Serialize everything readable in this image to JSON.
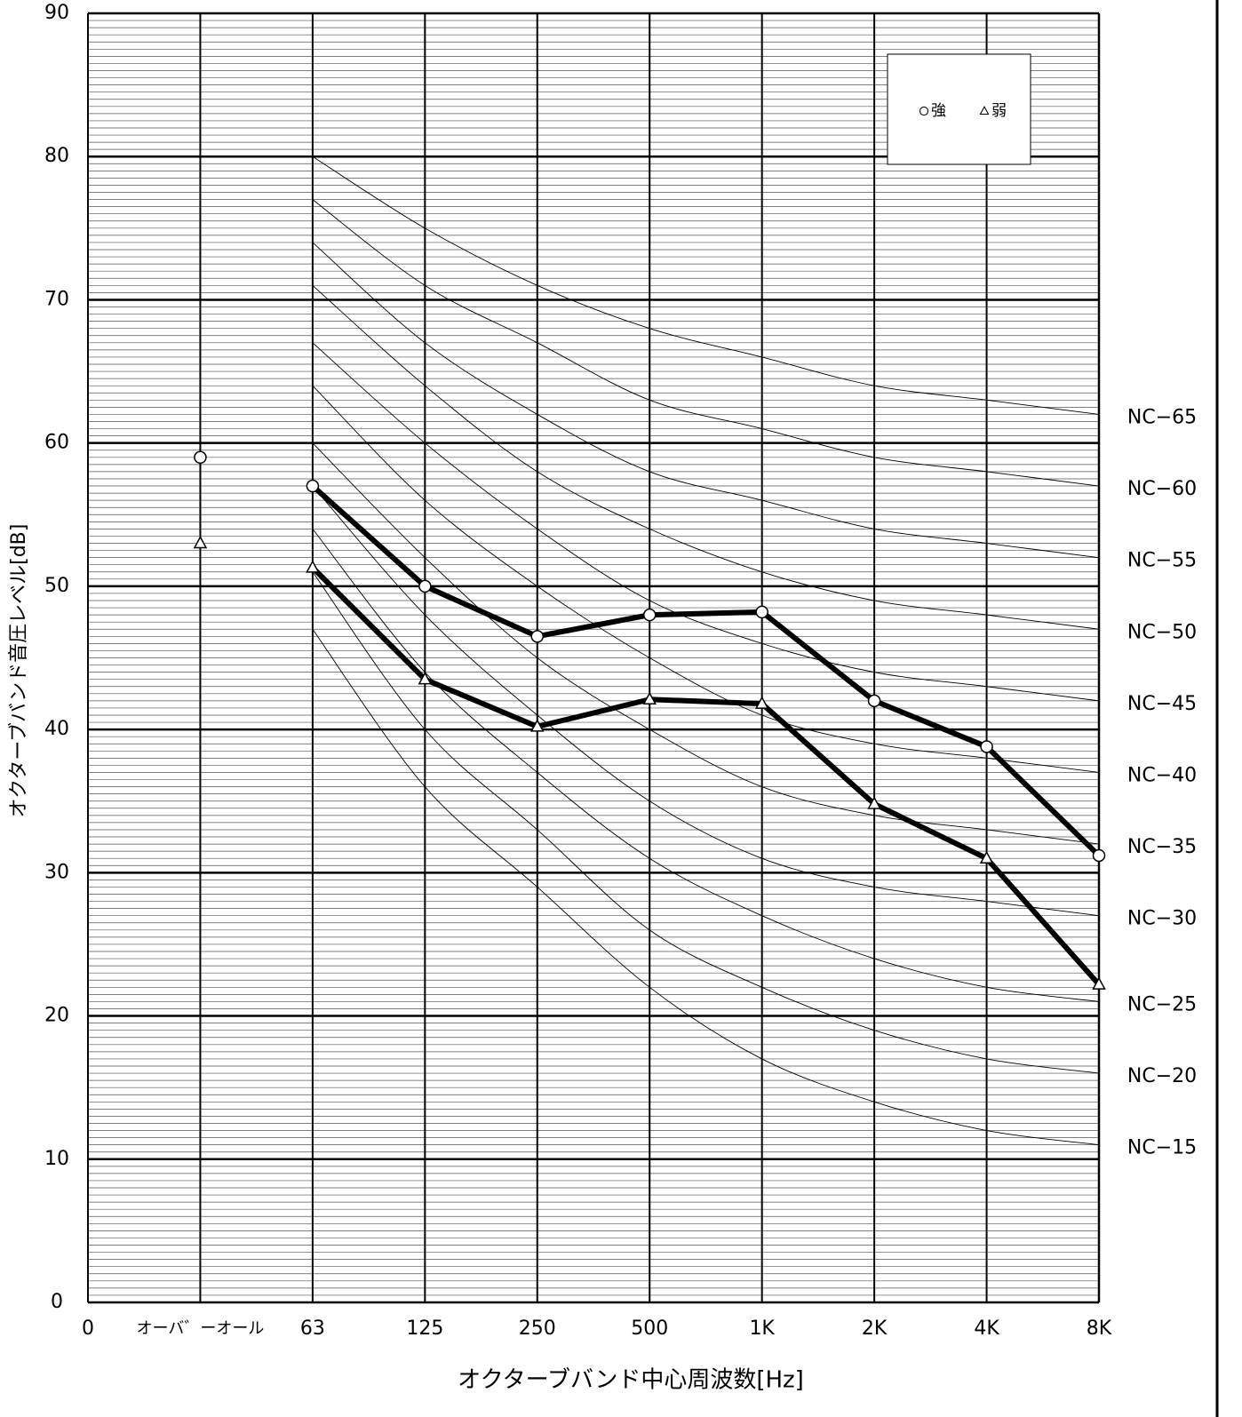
{
  "chart_data": {
    "type": "line",
    "ylabel": "オクターブバンド音圧レベル[dB]",
    "xlabel": "オクターブバンド中心周波数[Hz]",
    "categories": [
      "0",
      "オーバ゛ーオール",
      "63",
      "125",
      "250",
      "500",
      "1K",
      "2K",
      "4K",
      "8K"
    ],
    "ylim": [
      0,
      90
    ],
    "yticks": [
      0,
      10,
      20,
      30,
      40,
      50,
      60,
      70,
      80,
      90
    ],
    "grid": true,
    "minor_grid_step": 0.5,
    "legend_position": "upper right",
    "series": [
      {
        "name": "強",
        "marker": "circle",
        "color": "#000000",
        "overall": 59,
        "values": [
          null,
          null,
          57,
          50,
          46.5,
          48,
          48.2,
          42,
          38.8,
          31.2
        ]
      },
      {
        "name": "弱",
        "marker": "triangle",
        "color": "#000000",
        "overall": 53,
        "values": [
          null,
          null,
          51.3,
          43.5,
          40.2,
          42.1,
          41.8,
          34.8,
          31,
          22.2
        ]
      }
    ],
    "reference_curves": [
      {
        "name": "NC−65",
        "values": [
          null,
          null,
          80,
          75,
          71,
          68,
          66,
          64,
          63,
          62
        ]
      },
      {
        "name": "NC−60",
        "values": [
          null,
          null,
          77,
          71,
          67,
          63,
          61,
          59,
          58,
          57
        ]
      },
      {
        "name": "NC−55",
        "values": [
          null,
          null,
          74,
          67,
          62,
          58,
          56,
          54,
          53,
          52
        ]
      },
      {
        "name": "NC−50",
        "values": [
          null,
          null,
          71,
          64,
          58,
          54,
          51,
          49,
          48,
          47
        ]
      },
      {
        "name": "NC−45",
        "values": [
          null,
          null,
          67,
          60,
          54,
          49,
          46,
          44,
          43,
          42
        ]
      },
      {
        "name": "NC−40",
        "values": [
          null,
          null,
          64,
          56,
          50,
          45,
          41,
          39,
          38,
          37
        ]
      },
      {
        "name": "NC−35",
        "values": [
          null,
          null,
          60,
          52,
          45,
          40,
          36,
          34,
          33,
          32
        ]
      },
      {
        "name": "NC−30",
        "values": [
          null,
          null,
          57,
          48,
          41,
          35,
          31,
          29,
          28,
          27
        ]
      },
      {
        "name": "NC−25",
        "values": [
          null,
          null,
          54,
          44,
          37,
          31,
          27,
          24,
          22,
          21
        ]
      },
      {
        "name": "NC−20",
        "values": [
          null,
          null,
          51,
          40,
          33,
          26,
          22,
          19,
          17,
          16
        ]
      },
      {
        "name": "NC−15",
        "values": [
          null,
          null,
          47,
          36,
          29,
          22,
          17,
          14,
          12,
          11
        ]
      }
    ]
  }
}
